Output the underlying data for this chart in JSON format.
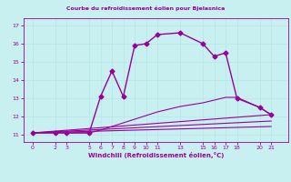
{
  "title": "Courbe du refroidissement éolien pour Bjelasnica",
  "xlabel": "Windchill (Refroidissement éolien,°C)",
  "background_color": "#c8f0f0",
  "line_color": "#990099",
  "grid_color": "#b8e8e8",
  "x_ticks": [
    0,
    2,
    3,
    5,
    6,
    7,
    8,
    9,
    10,
    11,
    13,
    15,
    16,
    17,
    18,
    20,
    21
  ],
  "y_ticks": [
    11,
    12,
    13,
    14,
    15,
    16,
    17
  ],
  "ylim": [
    10.6,
    17.4
  ],
  "xlim": [
    -0.8,
    22.5
  ],
  "lines": [
    {
      "x": [
        0,
        2,
        3,
        5,
        6,
        7,
        8,
        9,
        10,
        11,
        13,
        15,
        16,
        17,
        18,
        20,
        21
      ],
      "y": [
        11.1,
        11.1,
        11.1,
        11.1,
        13.1,
        14.5,
        13.1,
        15.9,
        16.0,
        16.5,
        16.6,
        16.0,
        15.3,
        15.5,
        13.0,
        12.5,
        12.1
      ],
      "marker": "D",
      "markersize": 2.5,
      "linewidth": 1.0
    },
    {
      "x": [
        0,
        21
      ],
      "y": [
        11.1,
        12.1
      ],
      "marker": null,
      "linewidth": 0.8
    },
    {
      "x": [
        0,
        21
      ],
      "y": [
        11.1,
        11.75
      ],
      "marker": null,
      "linewidth": 0.8
    },
    {
      "x": [
        0,
        21
      ],
      "y": [
        11.1,
        11.45
      ],
      "marker": null,
      "linewidth": 0.8
    },
    {
      "x": [
        0,
        2,
        3,
        5,
        6,
        7,
        8,
        9,
        10,
        11,
        13,
        15,
        16,
        17,
        18,
        20,
        21
      ],
      "y": [
        11.1,
        11.1,
        11.1,
        11.1,
        11.25,
        11.45,
        11.65,
        11.85,
        12.05,
        12.25,
        12.55,
        12.75,
        12.9,
        13.05,
        13.05,
        12.5,
        12.1
      ],
      "marker": null,
      "linewidth": 0.8
    }
  ]
}
